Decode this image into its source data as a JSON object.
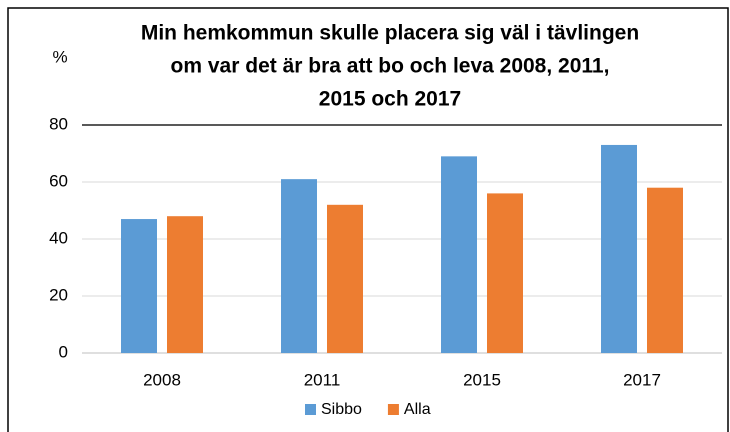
{
  "chart_data": {
    "type": "bar",
    "title": [
      "Min hemkommun skulle placera sig väl i tävlingen",
      "om var det är bra att bo och leva 2008, 2011,",
      "2015 och 2017"
    ],
    "y_label": "%",
    "categories": [
      "2008",
      "2011",
      "2015",
      "2017"
    ],
    "series": [
      {
        "name": "Sibbo",
        "color": "#5b9bd5",
        "values": [
          47,
          61,
          69,
          73
        ]
      },
      {
        "name": "Alla",
        "color": "#ed7d31",
        "values": [
          48,
          52,
          56,
          58
        ]
      }
    ],
    "ylim": [
      0,
      80
    ],
    "yticks": [
      0,
      20,
      40,
      60,
      80
    ],
    "grid": true,
    "legend": "bottom"
  }
}
